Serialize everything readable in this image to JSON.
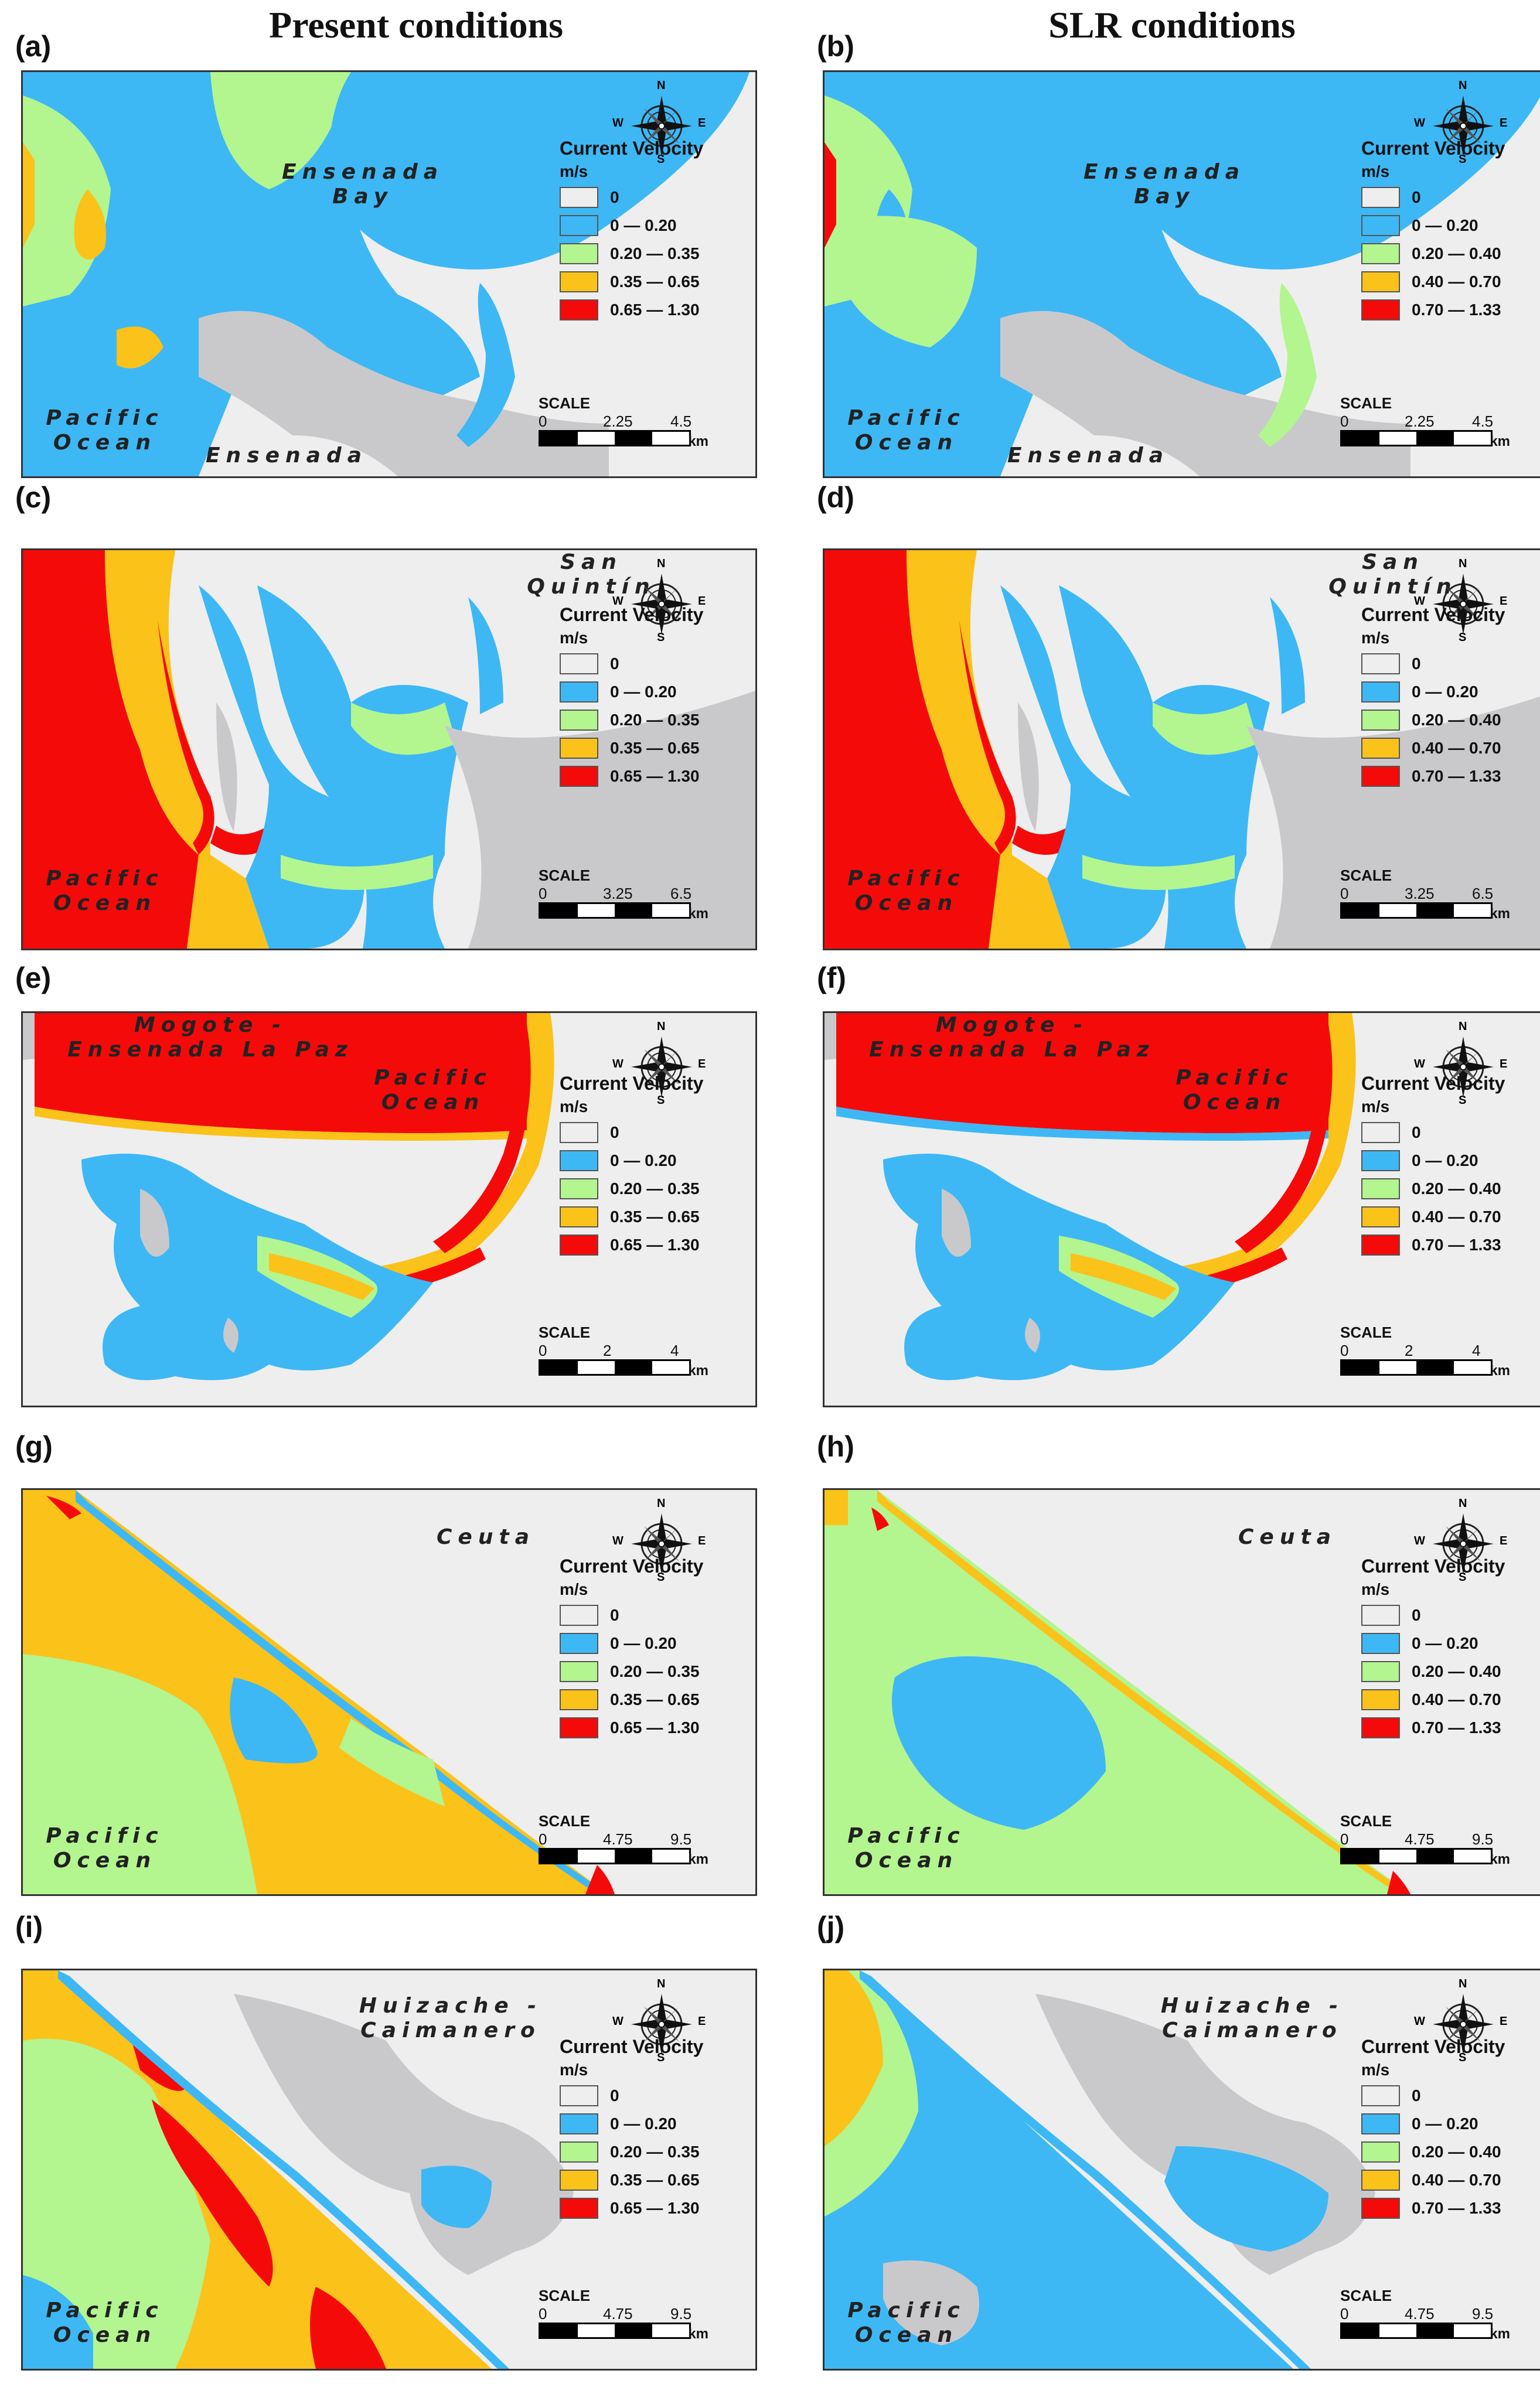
{
  "columns": [
    "Present conditions",
    "SLR conditions"
  ],
  "colors": {
    "zero": "#eeeeee",
    "blue": "#3db8f5",
    "green": "#b3f58f",
    "yellow": "#fbc21a",
    "red": "#f50a0a",
    "land": "#c9c9cc"
  },
  "legend_title": "Current Velocity",
  "legend_unit": "m/s",
  "legend_present": [
    "0",
    "0 — 0.20",
    "0.20 — 0.35",
    "0.35 — 0.65",
    "0.65 — 1.30"
  ],
  "legend_slr": [
    "0",
    "0 — 0.20",
    "0.20 — 0.40",
    "0.40 — 0.70",
    "0.70 — 1.33"
  ],
  "compass": {
    "n": "N",
    "s": "S",
    "e": "E",
    "w": "W"
  },
  "scale_title": "SCALE",
  "scale_unit": "km",
  "panels": [
    {
      "id": "(a)",
      "place": "Ensenada\nBay",
      "ocean": "Pacific\nOcean",
      "city": "Ensenada",
      "scale": [
        "0",
        "2.25",
        "4.5"
      ]
    },
    {
      "id": "(b)",
      "place": "Ensenada\nBay",
      "ocean": "Pacific\nOcean",
      "city": "Ensenada",
      "scale": [
        "0",
        "2.25",
        "4.5"
      ]
    },
    {
      "id": "(c)",
      "place": "San\nQuintín",
      "ocean": "Pacific\nOcean",
      "city": "",
      "scale": [
        "0",
        "3.25",
        "6.5"
      ]
    },
    {
      "id": "(d)",
      "place": "San\nQuintín",
      "ocean": "Pacific\nOcean",
      "city": "",
      "scale": [
        "0",
        "3.25",
        "6.5"
      ]
    },
    {
      "id": "(e)",
      "place": "Mogote -\nEnsenada La Paz",
      "ocean": "Pacific\nOcean",
      "city": "",
      "scale": [
        "0",
        "2",
        "4"
      ]
    },
    {
      "id": "(f)",
      "place": "Mogote -\nEnsenada La Paz",
      "ocean": "Pacific\nOcean",
      "city": "",
      "scale": [
        "0",
        "2",
        "4"
      ]
    },
    {
      "id": "(g)",
      "place": "Ceuta",
      "ocean": "Pacific\nOcean",
      "city": "",
      "scale": [
        "0",
        "4.75",
        "9.5"
      ]
    },
    {
      "id": "(h)",
      "place": "Ceuta",
      "ocean": "Pacific\nOcean",
      "city": "",
      "scale": [
        "0",
        "4.75",
        "9.5"
      ]
    },
    {
      "id": "(i)",
      "place": "Huizache -\nCaimanero",
      "ocean": "Pacific\nOcean",
      "city": "",
      "scale": [
        "0",
        "4.75",
        "9.5"
      ]
    },
    {
      "id": "(j)",
      "place": "Huizache -\nCaimanero",
      "ocean": "Pacific\nOcean",
      "city": "",
      "scale": [
        "0",
        "4.75",
        "9.5"
      ]
    }
  ]
}
